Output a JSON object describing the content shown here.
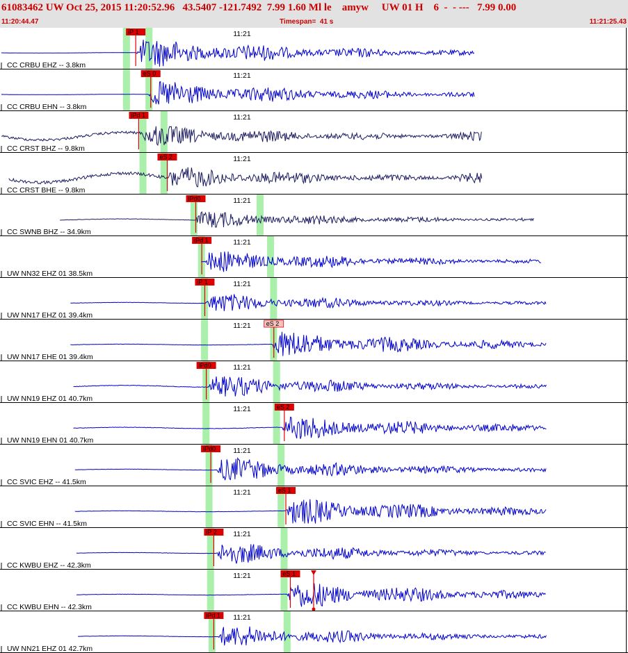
{
  "header": {
    "title": "61083462 UW Oct 25, 2015 11:20:52.96   43.5407 -121.7492  7.99 1.60 Ml le    amyw     UW 01 H    6  -  - ---   7.99 0.00",
    "start_time": "11:20:44.47",
    "timespan": "Timespan=  41 s",
    "end_time": "11:21:25.43"
  },
  "colors": {
    "header_bg": "#e2e2e2",
    "header_text": "#cc0000",
    "trace_blue": "#0000cc",
    "trace_dark": "#1a1a60",
    "pick_red": "#dd0000",
    "pick_light": "#f4c0c0",
    "phase_window": "#aaf0aa"
  },
  "time_axis": {
    "start_s": 0,
    "end_s": 41,
    "minute_label": "11:21"
  },
  "panels": [
    {
      "label": "CC CRBU EHZ -- 3.8km",
      "tick": "11:21",
      "pick": "iP 1",
      "pick_t": 8.3,
      "pick_style": "solid",
      "trace_start": 0,
      "trace_end": 31.5,
      "amp": 0.6,
      "color": "trace_blue",
      "onset": 9.0,
      "noise": 0.01,
      "green": [
        8.1,
        9.6
      ]
    },
    {
      "label": "CC CRBU EHN -- 3.8km",
      "tick": "11:21",
      "pick": "eS 0",
      "pick_t": 9.3,
      "pick_style": "solid",
      "trace_start": 0,
      "trace_end": 31.5,
      "amp": 0.55,
      "color": "trace_blue",
      "onset": 9.8,
      "noise": 0.01,
      "green": [
        8.1,
        9.6
      ]
    },
    {
      "label": "CC CRST BHZ -- 9.8km",
      "tick": "11:21",
      "pick": "iPd 1",
      "pick_t": 8.5,
      "pick_style": "solid",
      "trace_start": 0,
      "trace_end": 32.0,
      "amp": 0.45,
      "color": "trace_dark",
      "onset": 9.4,
      "noise": 0.18,
      "green": [
        9.2,
        10.6
      ],
      "tail": 0.6
    },
    {
      "label": "CC CRST BHE -- 9.8km",
      "tick": "11:21",
      "pick": "eS 2",
      "pick_t": 10.4,
      "pick_style": "solid",
      "trace_start": 0.5,
      "trace_end": 32.0,
      "amp": 0.45,
      "color": "trace_dark",
      "onset": 11.0,
      "noise": 0.22,
      "green": [
        9.2,
        10.6
      ],
      "tail": 0.8
    },
    {
      "label": "CC SWNB BHZ -- 34.9km",
      "tick": "11:21",
      "pick": "iPd0",
      "pick_t": 12.3,
      "pick_style": "solid",
      "trace_start": 3.9,
      "trace_end": 35.5,
      "amp": 0.35,
      "color": "trace_dark",
      "onset": 12.9,
      "noise": 0.03,
      "green": [
        12.6,
        17.0
      ]
    },
    {
      "label": "UW NN32 EHZ 01 38.5km",
      "tick": "11:21",
      "pick": "iPd 1",
      "pick_t": 12.7,
      "pick_style": "solid",
      "trace_start": 13.3,
      "trace_end": 36.0,
      "amp": 0.45,
      "color": "trace_blue",
      "onset": 13.5,
      "noise": 0.02,
      "green": [
        13.1,
        17.7
      ]
    },
    {
      "label": "UW NN17 EHZ 01 39.4km",
      "tick": "11:21",
      "pick": "iP 1",
      "pick_t": 12.9,
      "pick_style": "solid",
      "trace_start": 4.6,
      "trace_end": 36.3,
      "amp": 0.38,
      "color": "trace_blue",
      "onset": 13.6,
      "noise": 0.02,
      "green": [
        13.3,
        17.9
      ]
    },
    {
      "label": "UW NN17 EHE 01 39.4km",
      "tick": "11:21",
      "pick": "eS 2",
      "pick_t": 17.5,
      "pick_style": "light",
      "trace_start": 4.6,
      "trace_end": 36.3,
      "amp": 0.55,
      "color": "trace_blue",
      "onset": 18.0,
      "noise": 0.02,
      "green": [
        13.3,
        17.9
      ]
    },
    {
      "label": "UW NN19 EHZ 01 40.7km",
      "tick": "11:21",
      "pick": "iPd0",
      "pick_t": 13.0,
      "pick_style": "solid",
      "trace_start": 4.8,
      "trace_end": 36.3,
      "amp": 0.45,
      "color": "trace_blue",
      "onset": 13.8,
      "noise": 0.04,
      "green": [
        13.4,
        18.1
      ]
    },
    {
      "label": "UW NN19 EHN 01 40.7km",
      "tick": "11:21",
      "pick": "eS 2",
      "pick_t": 18.2,
      "pick_style": "solid",
      "trace_start": 4.8,
      "trace_end": 36.3,
      "amp": 0.5,
      "color": "trace_blue",
      "onset": 18.7,
      "noise": 0.03,
      "green": [
        13.4,
        18.1
      ]
    },
    {
      "label": "CC SVIC EHZ -- 41.5km",
      "tick": "11:21",
      "pick": "iPd0",
      "pick_t": 13.3,
      "pick_style": "solid",
      "trace_start": 4.9,
      "trace_end": 36.3,
      "amp": 0.48,
      "color": "trace_blue",
      "onset": 14.3,
      "noise": 0.02,
      "green": [
        13.6,
        18.4
      ]
    },
    {
      "label": "CC SVIC EHN -- 41.5km",
      "tick": "11:21",
      "pick": "eS 1",
      "pick_t": 18.3,
      "pick_style": "solid",
      "trace_start": 4.9,
      "trace_end": 36.3,
      "amp": 0.55,
      "color": "trace_blue",
      "onset": 18.9,
      "noise": 0.02,
      "green": [
        13.6,
        18.4
      ]
    },
    {
      "label": "CC KWBU EHZ -- 42.3km",
      "tick": "11:21",
      "pick": "iP 2",
      "pick_t": 13.5,
      "pick_style": "solid",
      "trace_start": 5.0,
      "trace_end": 36.3,
      "amp": 0.45,
      "color": "trace_blue",
      "onset": 14.3,
      "noise": 0.02,
      "green": [
        13.7,
        18.6
      ]
    },
    {
      "label": "CC KWBU EHN -- 42.3km",
      "tick": "11:21",
      "pick": "eS 1",
      "pick_t": 18.6,
      "pick_style": "solid",
      "trace_start": 5.0,
      "trace_end": 36.3,
      "amp": 0.55,
      "color": "trace_blue",
      "onset": 19.0,
      "noise": 0.02,
      "green": [
        13.7,
        18.6
      ],
      "marker_t": 20.8
    },
    {
      "label": "UW NN21 EHZ 01 42.7km",
      "tick": "11:21",
      "pick": "iPd 1",
      "pick_t": 13.5,
      "pick_style": "solid",
      "trace_start": 5.1,
      "trace_end": 36.3,
      "amp": 0.45,
      "color": "trace_blue",
      "onset": 14.4,
      "noise": 0.02,
      "green": [
        13.8,
        18.8
      ]
    }
  ]
}
